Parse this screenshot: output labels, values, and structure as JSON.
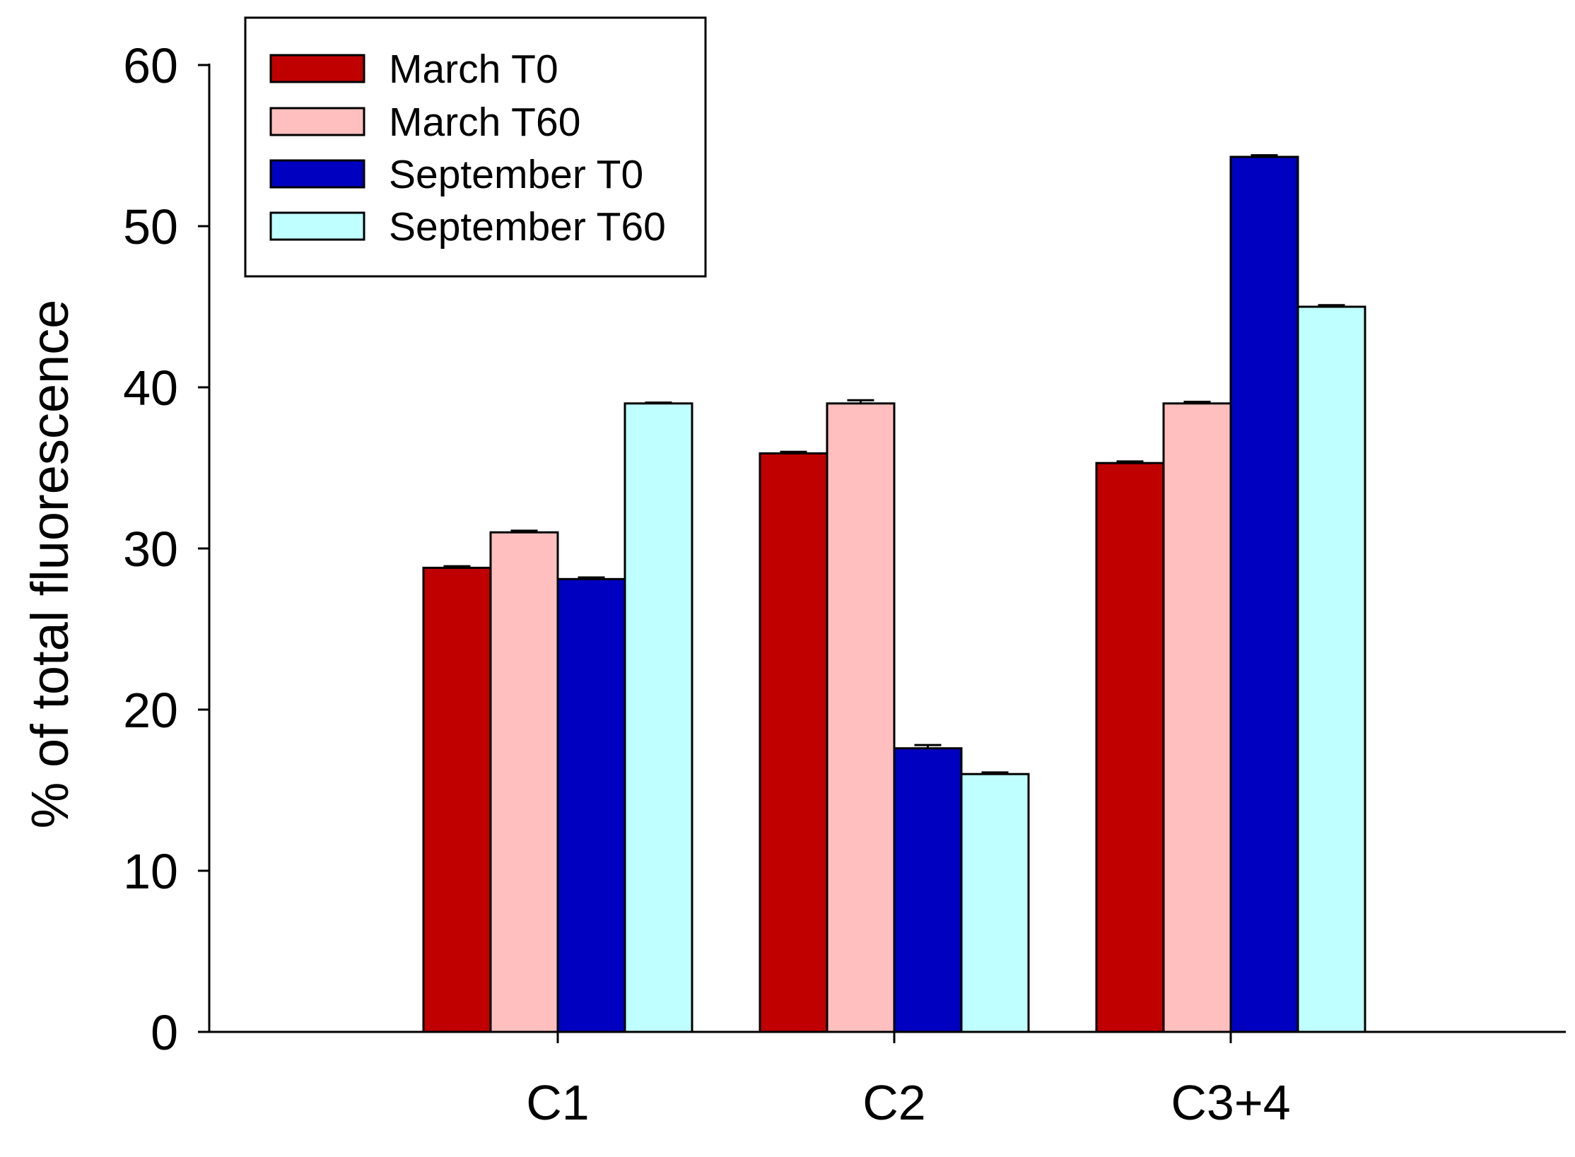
{
  "chart_data": {
    "type": "bar",
    "title": "",
    "xlabel": "",
    "ylabel": "% of total fluorescence",
    "ylim": [
      0,
      60
    ],
    "yticks": [
      0,
      10,
      20,
      30,
      40,
      50,
      60
    ],
    "categories": [
      "C1",
      "C2",
      "C3+4"
    ],
    "series": [
      {
        "name": "March T0",
        "color": "#c00000",
        "values": [
          28.8,
          35.9,
          35.3
        ],
        "errors": [
          0.1,
          0.1,
          0.1
        ]
      },
      {
        "name": "March T60",
        "color": "#ffbfbf",
        "values": [
          31.0,
          39.0,
          39.0
        ],
        "errors": [
          0.1,
          0.2,
          0.1
        ]
      },
      {
        "name": "September T0",
        "color": "#0000c0",
        "values": [
          28.1,
          17.6,
          54.3
        ],
        "errors": [
          0.1,
          0.2,
          0.1
        ]
      },
      {
        "name": "September T60",
        "color": "#c0ffff",
        "values": [
          39.0,
          16.0,
          45.0
        ],
        "errors": [
          0.05,
          0.1,
          0.1
        ]
      }
    ],
    "legend": "top-left",
    "grid": false
  }
}
